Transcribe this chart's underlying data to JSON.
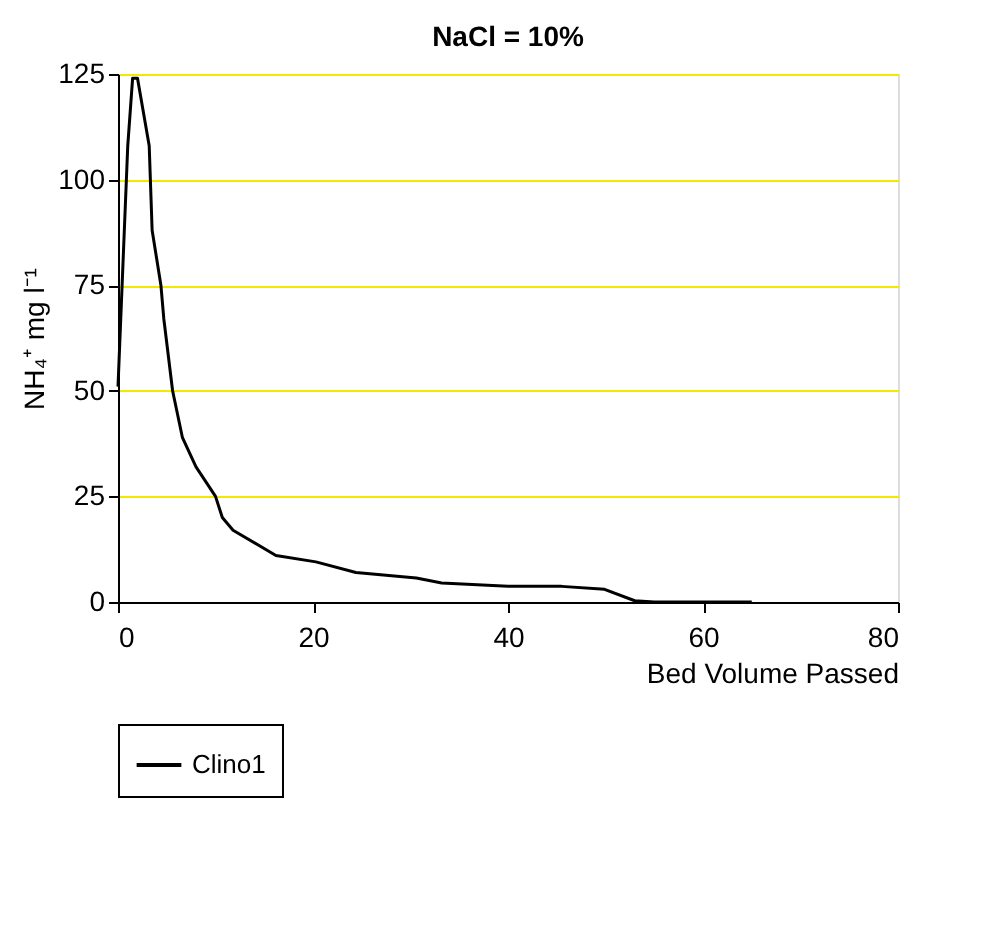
{
  "chart_data": {
    "type": "line",
    "title": "NaCl = 10%",
    "xlabel": "Bed Volume Passed",
    "ylabel": "NH₄⁺ mg l⁻¹",
    "x": [
      0,
      1.0,
      1.5,
      2.0,
      3.2,
      3.5,
      4.4,
      4.7,
      5.6,
      6.6,
      8,
      10,
      10.7,
      11.8,
      16.2,
      20.3,
      24.4,
      30.6,
      33.2,
      40,
      45.5,
      49.9,
      53,
      55,
      65
    ],
    "series": [
      {
        "name": "Clino1",
        "color": "#000000",
        "values": [
          51,
          108,
          124,
          124,
          108,
          88,
          75,
          67,
          50,
          39,
          32,
          25,
          20,
          17,
          11,
          9.5,
          7,
          5.7,
          4.5,
          3.7,
          3.7,
          3.0,
          0.3,
          0,
          0
        ]
      }
    ],
    "xlim": [
      0,
      80
    ],
    "xticks": [
      0,
      20,
      40,
      60,
      80
    ],
    "ylim": [
      0,
      125
    ],
    "yticks": [
      0,
      25,
      50,
      75,
      100,
      125
    ],
    "grid": "y",
    "legend": "bottom",
    "marker": "none",
    "line_style": "solid"
  }
}
